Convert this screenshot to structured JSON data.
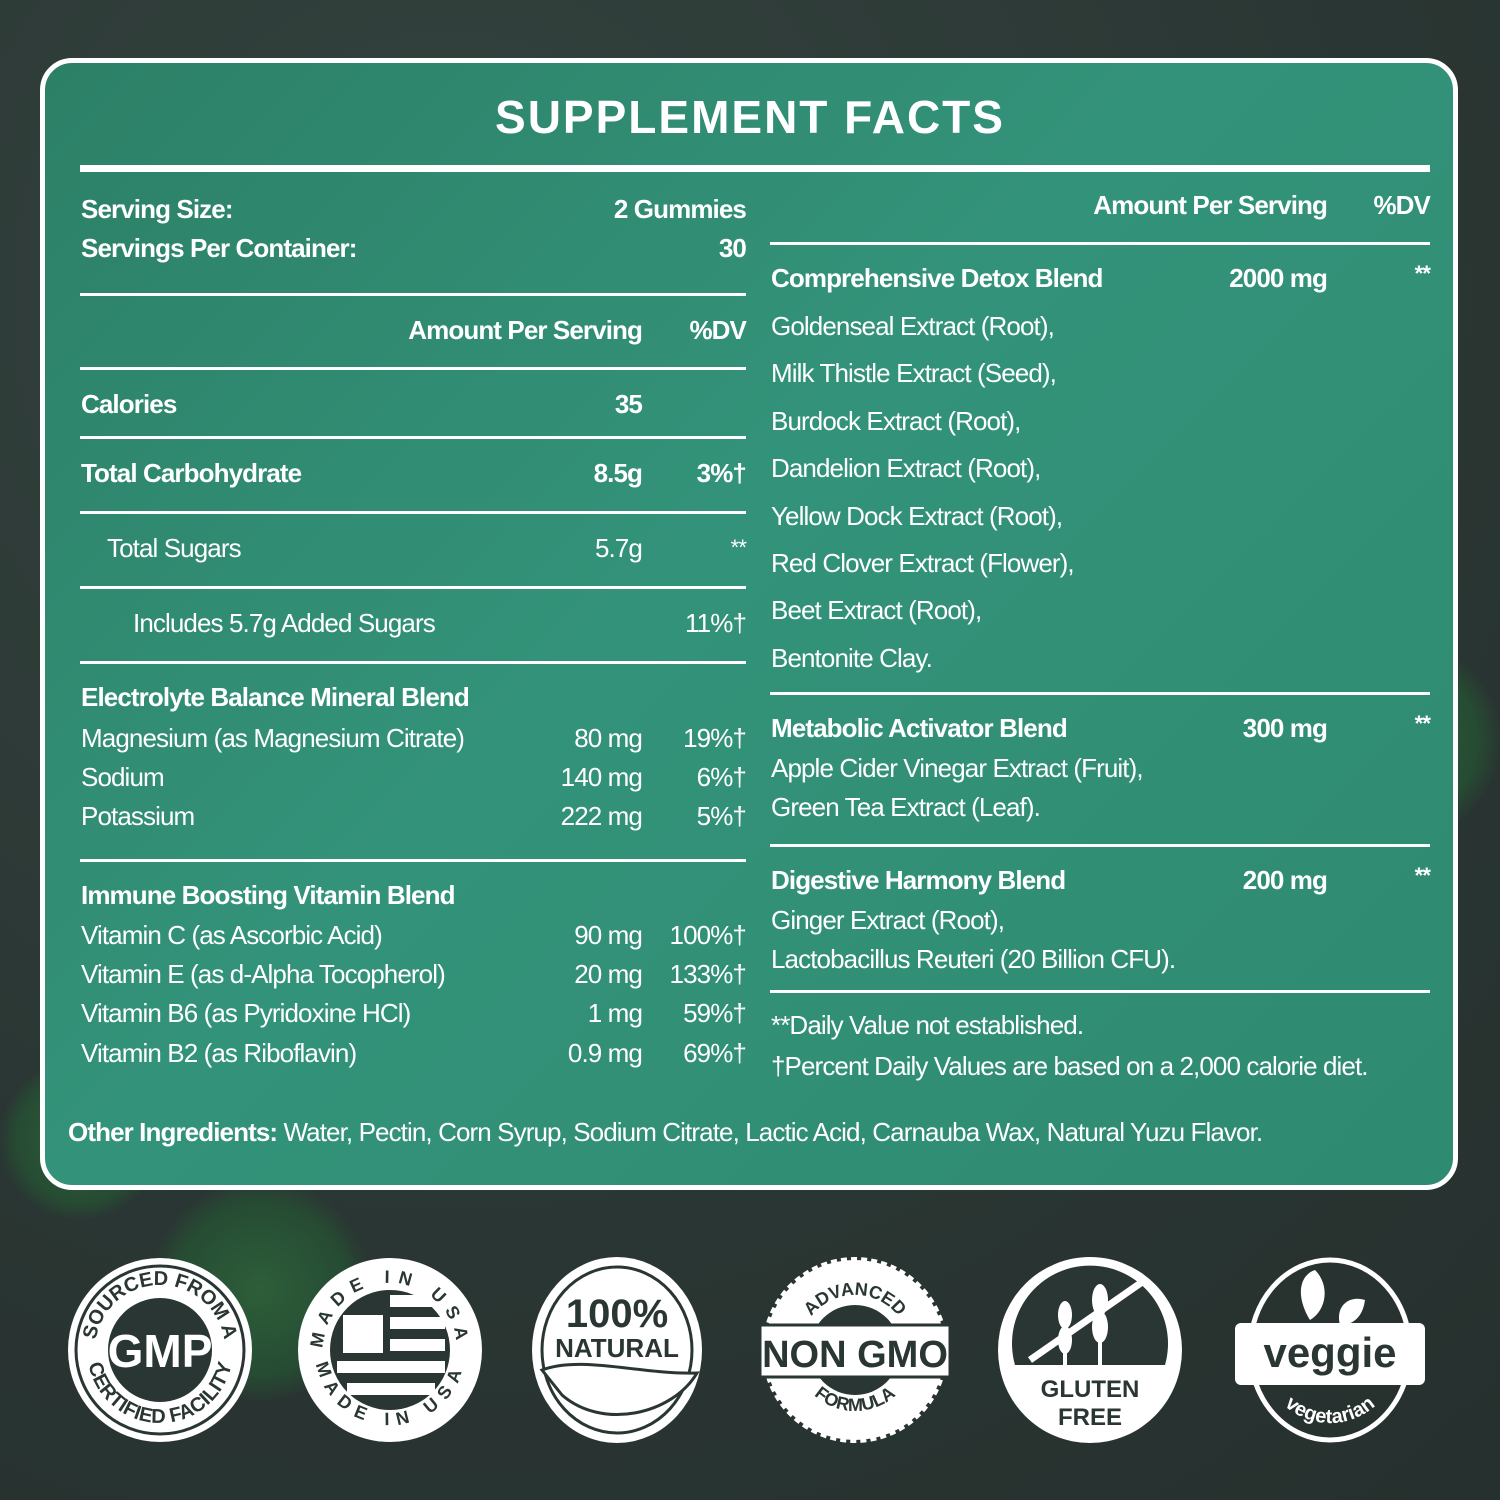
{
  "title": "SUPPLEMENT FACTS",
  "serving": {
    "size_label": "Serving Size:",
    "size_value": "2 Gummies",
    "per_container_label": "Servings Per Container:",
    "per_container_value": "30"
  },
  "left_header": {
    "amount": "Amount Per Serving",
    "dv": "%DV"
  },
  "right_header": {
    "amount": "Amount Per Serving",
    "dv": "%DV"
  },
  "nutrients": [
    {
      "name": "Calories",
      "amount": "35",
      "dv": ""
    },
    {
      "name": "Total Carbohydrate",
      "amount": "8.5g",
      "dv": "3%†"
    },
    {
      "name": "Total Sugars",
      "amount": "5.7g",
      "dv": "**"
    },
    {
      "name": "Includes 5.7g Added Sugars",
      "amount": "",
      "dv": "11%†"
    }
  ],
  "left_blends": [
    {
      "name": "Electrolyte Balance Mineral Blend",
      "items": [
        {
          "name": "Magnesium (as Magnesium Citrate)",
          "amount": "80 mg",
          "dv": "19%†"
        },
        {
          "name": "Sodium",
          "amount": "140 mg",
          "dv": "6%†"
        },
        {
          "name": "Potassium",
          "amount": "222 mg",
          "dv": "5%†"
        }
      ]
    },
    {
      "name": "Immune Boosting Vitamin Blend",
      "items": [
        {
          "name": "Vitamin C (as Ascorbic Acid)",
          "amount": "90 mg",
          "dv": "100%†"
        },
        {
          "name": "Vitamin E (as d-Alpha Tocopherol)",
          "amount": "20 mg",
          "dv": "133%†"
        },
        {
          "name": "Vitamin B6 (as Pyridoxine HCl)",
          "amount": "1 mg",
          "dv": "59%†"
        },
        {
          "name": "Vitamin B2 (as Riboflavin)",
          "amount": "0.9 mg",
          "dv": "69%†"
        }
      ]
    }
  ],
  "right_blends": [
    {
      "name": "Comprehensive Detox Blend",
      "amount": "2000 mg",
      "dv": "**",
      "items": [
        "Goldenseal Extract (Root),",
        "Milk Thistle Extract (Seed),",
        "Burdock Extract (Root),",
        "Dandelion Extract (Root),",
        "Yellow Dock Extract (Root),",
        "Red Clover Extract (Flower),",
        "Beet Extract (Root),",
        "Bentonite Clay."
      ]
    },
    {
      "name": "Metabolic Activator Blend",
      "amount": "300 mg",
      "dv": "**",
      "items": [
        "Apple Cider Vinegar Extract (Fruit),",
        "Green Tea Extract (Leaf)."
      ]
    },
    {
      "name": "Digestive Harmony Blend",
      "amount": "200 mg",
      "dv": "**",
      "items": [
        "Ginger Extract (Root),",
        "Lactobacillus Reuteri (20 Billion CFU)."
      ]
    }
  ],
  "footnotes": [
    "**Daily Value not established.",
    "†Percent Daily Values are based on a 2,000 calorie diet."
  ],
  "other_ingredients": {
    "label": "Other Ingredients:",
    "value": "Water, Pectin, Corn Syrup, Sodium Citrate, Lactic Acid, Carnauba Wax, Natural Yuzu Flavor."
  },
  "badges": {
    "gmp": {
      "top": "SOURCED FROM A",
      "center": "GMP",
      "bottom": "CERTIFIED FACILITY"
    },
    "usa": {
      "top": "MADE IN USA",
      "bottom": "MADE IN USA"
    },
    "natural": {
      "line1": "100%",
      "line2": "NATURAL"
    },
    "nongmo": {
      "top": "ADVANCED",
      "center": "NON GMO",
      "bottom": "FORMULA"
    },
    "gluten": {
      "line1": "GLUTEN",
      "line2": "FREE"
    },
    "veggie": {
      "center": "veggie",
      "bottom": "vegetarian"
    }
  },
  "colors": {
    "panel": "#2e8a70",
    "background": "#2a3633",
    "text": "#ffffff"
  }
}
